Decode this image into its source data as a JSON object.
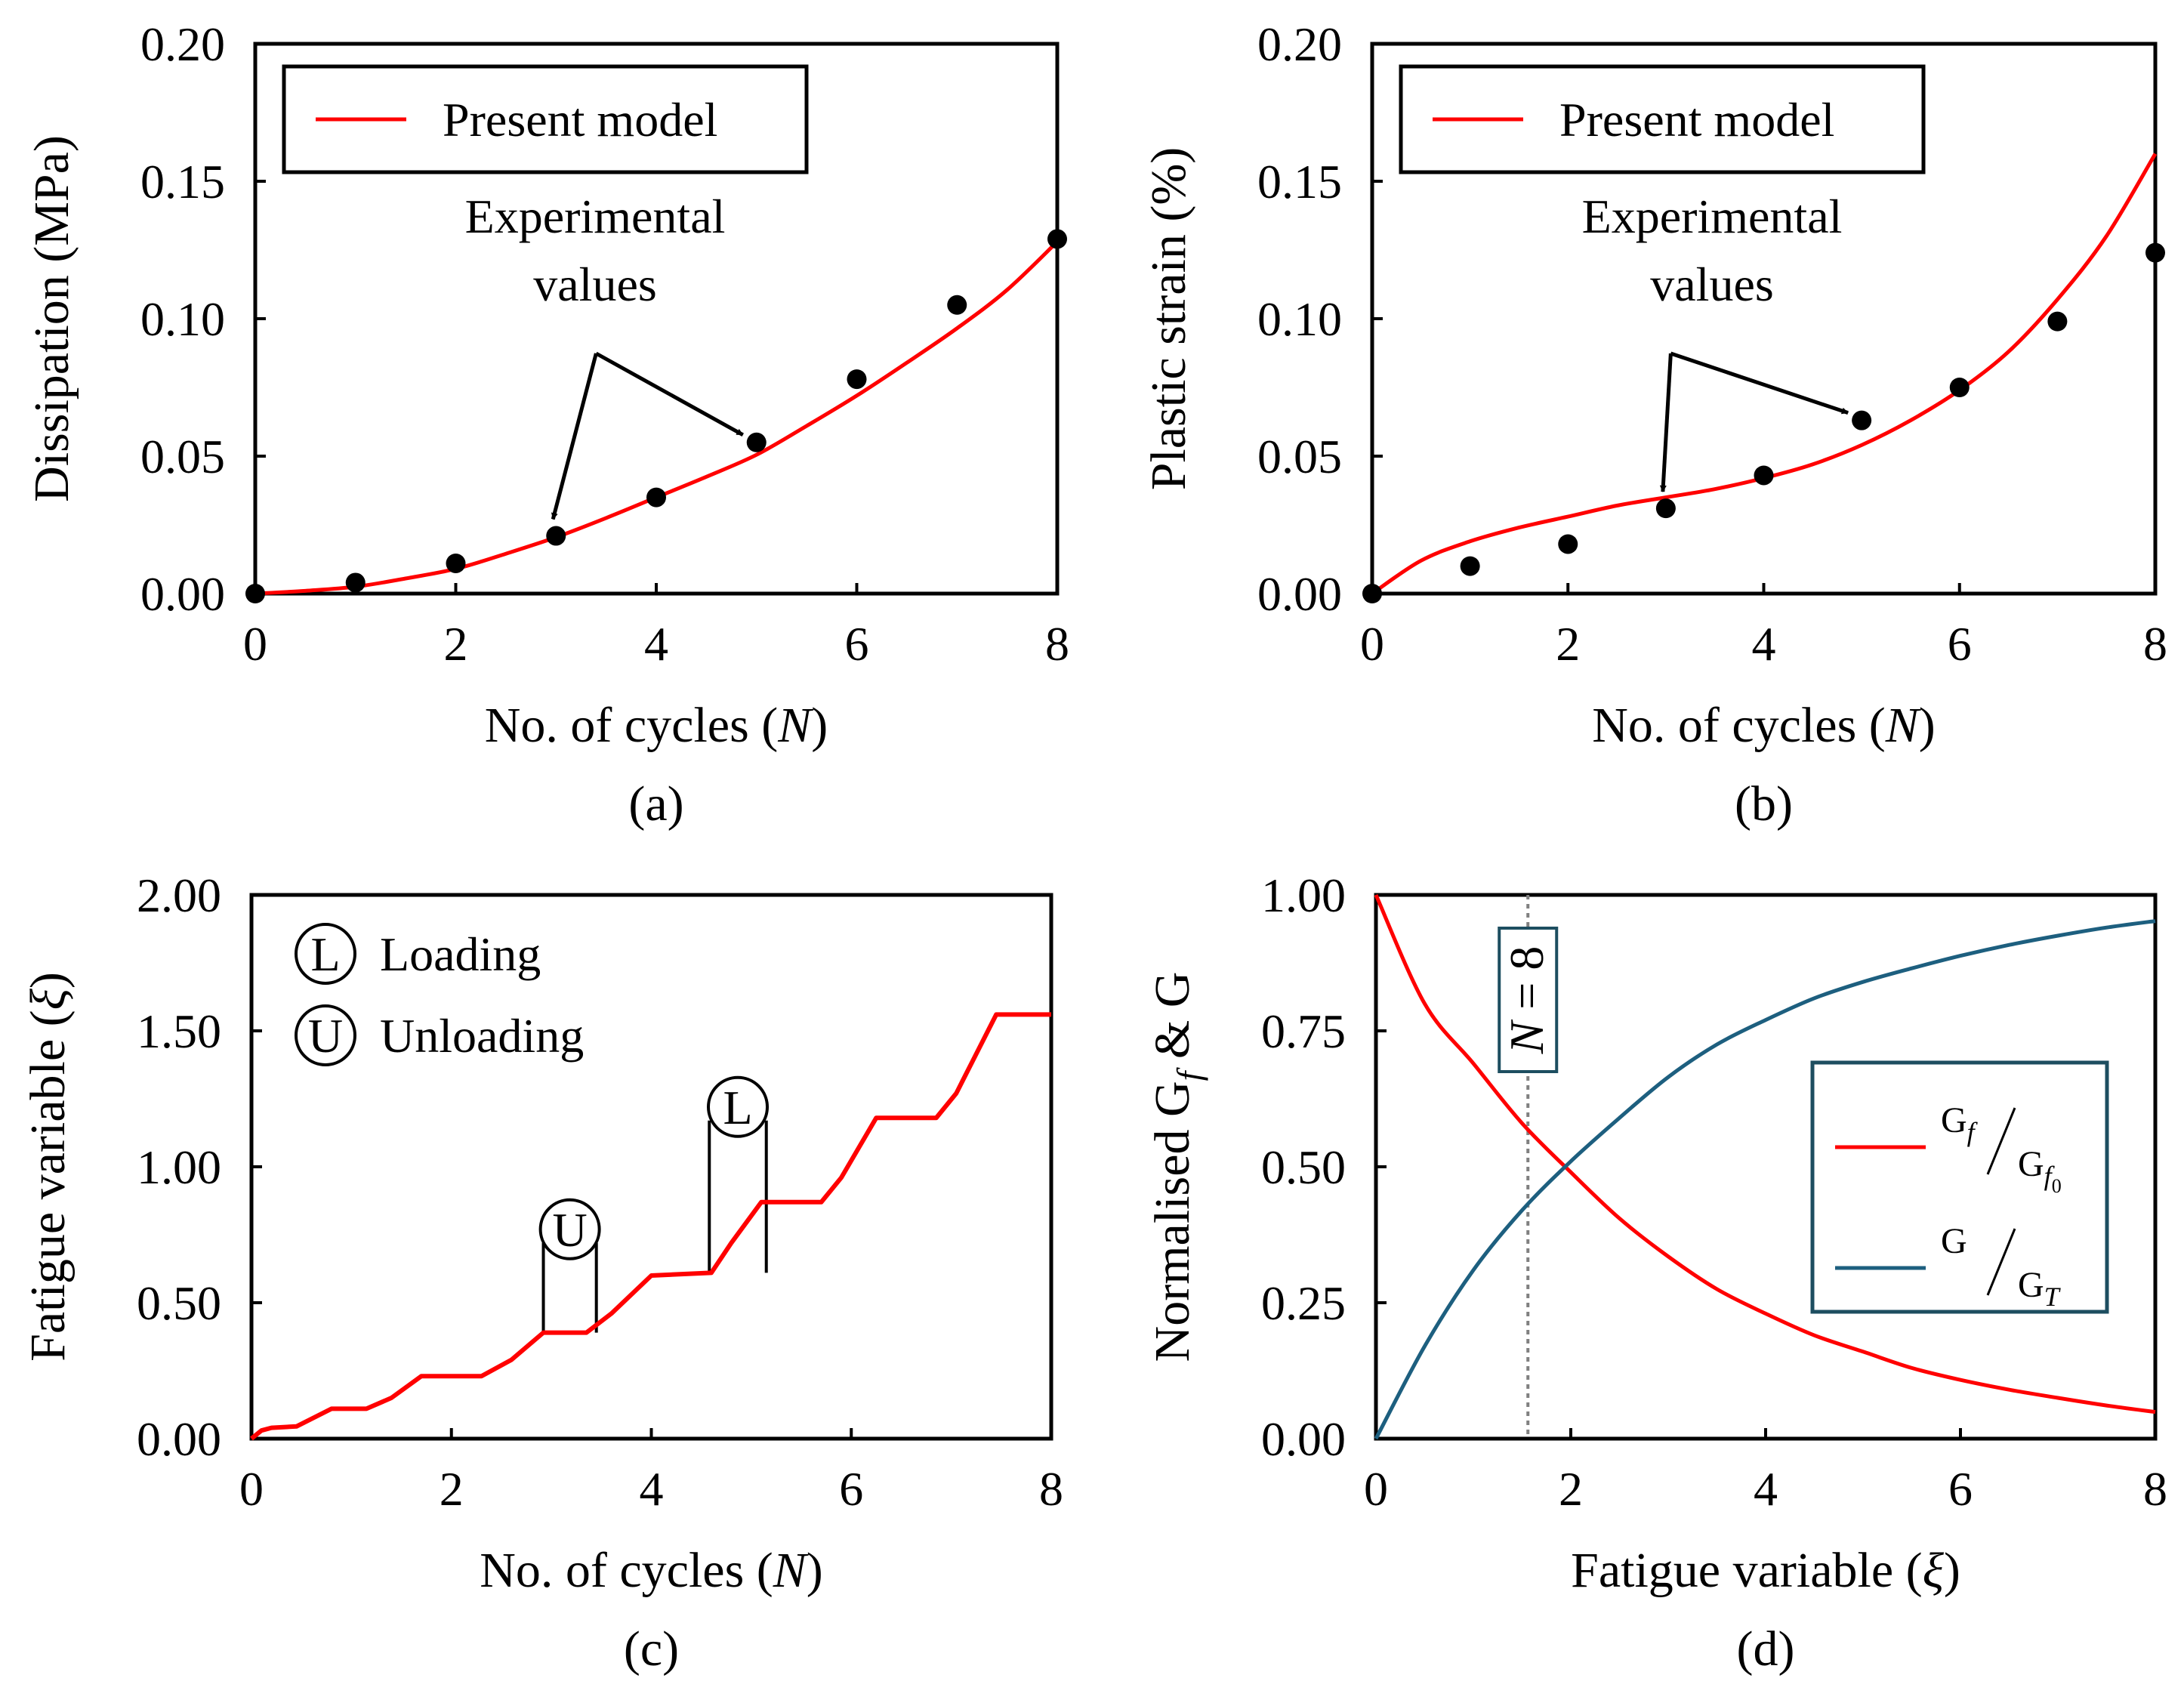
{
  "colors": {
    "model_red": "#ff0000",
    "ratio_teal": "#1d5f7f",
    "axis": "#000000",
    "vline": "#808080",
    "legend_d_border": "#1d4e60"
  },
  "chart_data": [
    {
      "id": "a",
      "type": "line+scatter",
      "caption": "(a)",
      "xlabel": "No. of cycles (N)",
      "xlabel_parts": {
        "prefix": "No. of cycles (",
        "var": "N",
        "suffix": ")"
      },
      "ylabel": "Dissipation (MPa)",
      "xlim": [
        0,
        8
      ],
      "ylim": [
        0,
        0.2
      ],
      "x_ticks": [
        "0",
        "2",
        "4",
        "6",
        "8"
      ],
      "x_tick_values": [
        0,
        2,
        4,
        6,
        8
      ],
      "y_ticks": [
        "0.00",
        "0.05",
        "0.10",
        "0.15",
        "0.20"
      ],
      "y_tick_values": [
        0,
        0.05,
        0.1,
        0.15,
        0.2
      ],
      "legend": [
        "Present model"
      ],
      "annotation": [
        "Experimental",
        "values"
      ],
      "annotation_targets": [
        3,
        5
      ],
      "model": {
        "x": [
          0,
          0.5,
          1,
          1.5,
          2,
          2.5,
          3,
          3.5,
          4,
          4.5,
          5,
          5.5,
          6,
          6.5,
          7,
          7.5,
          8
        ],
        "y": [
          0,
          0.001,
          0.0025,
          0.0055,
          0.009,
          0.0145,
          0.0205,
          0.0275,
          0.035,
          0.0425,
          0.0505,
          0.061,
          0.072,
          0.084,
          0.0965,
          0.1105,
          0.128
        ]
      },
      "experimental": {
        "x": [
          0,
          1,
          2,
          3,
          4,
          5,
          6,
          7,
          8
        ],
        "y": [
          0,
          0.004,
          0.011,
          0.021,
          0.035,
          0.055,
          0.078,
          0.105,
          0.129
        ]
      }
    },
    {
      "id": "b",
      "type": "line+scatter",
      "caption": "(b)",
      "xlabel": "No. of cycles (N)",
      "xlabel_parts": {
        "prefix": "No. of cycles (",
        "var": "N",
        "suffix": ")"
      },
      "ylabel": "Plastic strain (%)",
      "xlim": [
        0,
        8
      ],
      "ylim": [
        0,
        0.2
      ],
      "x_ticks": [
        "0",
        "2",
        "4",
        "6",
        "8"
      ],
      "x_tick_values": [
        0,
        2,
        4,
        6,
        8
      ],
      "y_ticks": [
        "0.00",
        "0.05",
        "0.10",
        "0.15",
        "0.20"
      ],
      "y_tick_values": [
        0,
        0.05,
        0.1,
        0.15,
        0.2
      ],
      "legend": [
        "Present model"
      ],
      "annotation": [
        "Experimental",
        "values"
      ],
      "annotation_targets": [
        3,
        5
      ],
      "model": {
        "x": [
          0,
          0.5,
          1,
          1.5,
          2,
          2.5,
          3,
          3.5,
          4,
          4.5,
          5,
          5.5,
          6,
          6.5,
          7,
          7.5,
          8
        ],
        "y": [
          0,
          0.012,
          0.019,
          0.024,
          0.028,
          0.032,
          0.035,
          0.038,
          0.042,
          0.047,
          0.054,
          0.063,
          0.074,
          0.088,
          0.107,
          0.13,
          0.16
        ]
      },
      "experimental": {
        "x": [
          0,
          1,
          2,
          3,
          4,
          5,
          6,
          7,
          8
        ],
        "y": [
          0,
          0.01,
          0.018,
          0.031,
          0.043,
          0.063,
          0.075,
          0.099,
          0.124
        ]
      }
    },
    {
      "id": "c",
      "type": "line",
      "caption": "(c)",
      "xlabel": "No. of cycles (N)",
      "xlabel_parts": {
        "prefix": "No. of cycles (",
        "var": "N",
        "suffix": ")"
      },
      "ylabel": "Fatigue variable (ξ)",
      "xlim": [
        0,
        8
      ],
      "ylim": [
        0,
        2
      ],
      "x_ticks": [
        "0",
        "2",
        "4",
        "6",
        "8"
      ],
      "x_tick_values": [
        0,
        2,
        4,
        6,
        8
      ],
      "y_ticks": [
        "0.00",
        "0.50",
        "1.00",
        "1.50",
        "2.00"
      ],
      "y_tick_values": [
        0,
        0.5,
        1,
        1.5,
        2
      ],
      "legend": [
        {
          "symbol": "L",
          "label": "Loading"
        },
        {
          "symbol": "U",
          "label": "Unloading"
        }
      ],
      "callouts": [
        {
          "symbol": "U",
          "x_range": [
            2.92,
            3.45
          ],
          "y_base": 0.39,
          "y_top": 0.72
        },
        {
          "symbol": "L",
          "x_range": [
            4.58,
            5.15
          ],
          "y_base": 0.61,
          "y_top": 1.17
        }
      ],
      "model": {
        "x": [
          0,
          0.1,
          0.2,
          0.45,
          0.8,
          1.15,
          1.4,
          1.7,
          2.3,
          2.6,
          2.92,
          3.35,
          3.6,
          4.0,
          4.6,
          4.8,
          5.1,
          5.7,
          5.9,
          6.25,
          6.85,
          7.05,
          7.45,
          8.0
        ],
        "y": [
          0,
          0.03,
          0.04,
          0.045,
          0.11,
          0.11,
          0.15,
          0.23,
          0.23,
          0.29,
          0.39,
          0.39,
          0.46,
          0.6,
          0.61,
          0.72,
          0.87,
          0.87,
          0.96,
          1.18,
          1.18,
          1.27,
          1.56,
          1.56
        ]
      }
    },
    {
      "id": "d",
      "type": "line",
      "caption": "(d)",
      "xlabel": "Fatigue variable (ξ)",
      "xlabel_parts": {
        "prefix": "Fatigue variable (",
        "var": "ξ",
        "suffix": ")"
      },
      "ylabel": "Normalised Gf & G",
      "ylabel_parts": {
        "a": "Normalised G",
        "sub": "f",
        "b": " & G"
      },
      "xlim": [
        0,
        8
      ],
      "ylim": [
        0,
        1
      ],
      "x_ticks": [
        "0",
        "2",
        "4",
        "6",
        "8"
      ],
      "x_tick_values": [
        0,
        2,
        4,
        6,
        8
      ],
      "y_ticks": [
        "0.00",
        "0.25",
        "0.50",
        "0.75",
        "1.00"
      ],
      "y_tick_values": [
        0,
        0.25,
        0.5,
        0.75,
        1
      ],
      "vline": {
        "x": 1.56,
        "label": "N = 8"
      },
      "legend": [
        {
          "num": "G",
          "num_sub": "f",
          "den": "G",
          "den_sub": "f",
          "den_sub2": "0"
        },
        {
          "num": "G",
          "num_sub": "",
          "den": "G",
          "den_sub": "T",
          "den_sub2": ""
        }
      ],
      "series": [
        {
          "name": "Gf/Gf0",
          "x": [
            0,
            0.5,
            1,
            1.5,
            2,
            2.5,
            3,
            3.5,
            4,
            4.5,
            5,
            5.5,
            6,
            6.5,
            7,
            7.5,
            8
          ],
          "y": [
            1,
            0.8,
            0.69,
            0.58,
            0.49,
            0.405,
            0.335,
            0.275,
            0.23,
            0.19,
            0.16,
            0.13,
            0.108,
            0.09,
            0.075,
            0.061,
            0.049
          ]
        },
        {
          "name": "G/GT",
          "x": [
            0,
            0.5,
            1,
            1.5,
            2,
            2.5,
            3,
            3.5,
            4,
            4.5,
            5,
            5.5,
            6,
            6.5,
            7,
            7.5,
            8
          ],
          "y": [
            0,
            0.17,
            0.31,
            0.42,
            0.51,
            0.59,
            0.665,
            0.725,
            0.77,
            0.81,
            0.84,
            0.865,
            0.888,
            0.908,
            0.925,
            0.94,
            0.952
          ]
        }
      ]
    }
  ]
}
